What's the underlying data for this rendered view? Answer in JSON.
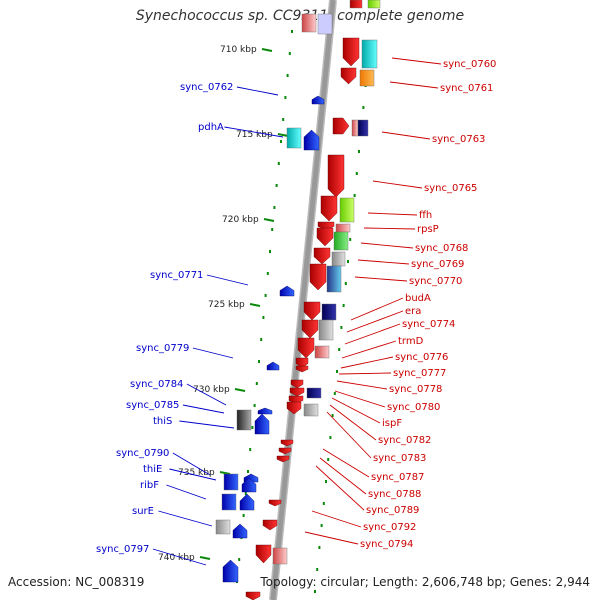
{
  "title": "Synechococcus sp. CC9311, complete genome",
  "accession": "Accession: NC_008319",
  "topology": "Topology: circular; Length: 2,606,748 bp; Genes: 2,944",
  "colors": {
    "left_label": "#0000cc",
    "right_label": "#cc0000",
    "backbone": "#999999",
    "tick": "#0a8a0a"
  },
  "kbp_labels": [
    "710 kbp",
    "715 kbp",
    "720 kbp",
    "725 kbp",
    "730 kbp",
    "735 kbp",
    "740 kbp"
  ],
  "left_genes": [
    "sync_0762",
    "pdhA",
    "sync_0771",
    "sync_0779",
    "sync_0784",
    "sync_0785",
    "thiS",
    "sync_0790",
    "thiE",
    "ribF",
    "surE",
    "sync_0797"
  ],
  "right_genes": [
    "sync_0760",
    "sync_0761",
    "sync_0763",
    "sync_0765",
    "ffh",
    "rpsP",
    "sync_0768",
    "sync_0769",
    "sync_0770",
    "budA",
    "era",
    "sync_0774",
    "trmD",
    "sync_0776",
    "sync_0777",
    "sync_0778",
    "sync_0780",
    "ispF",
    "sync_0782",
    "sync_0783",
    "sync_0787",
    "sync_0788",
    "sync_0789",
    "sync_0792",
    "sync_0794"
  ]
}
